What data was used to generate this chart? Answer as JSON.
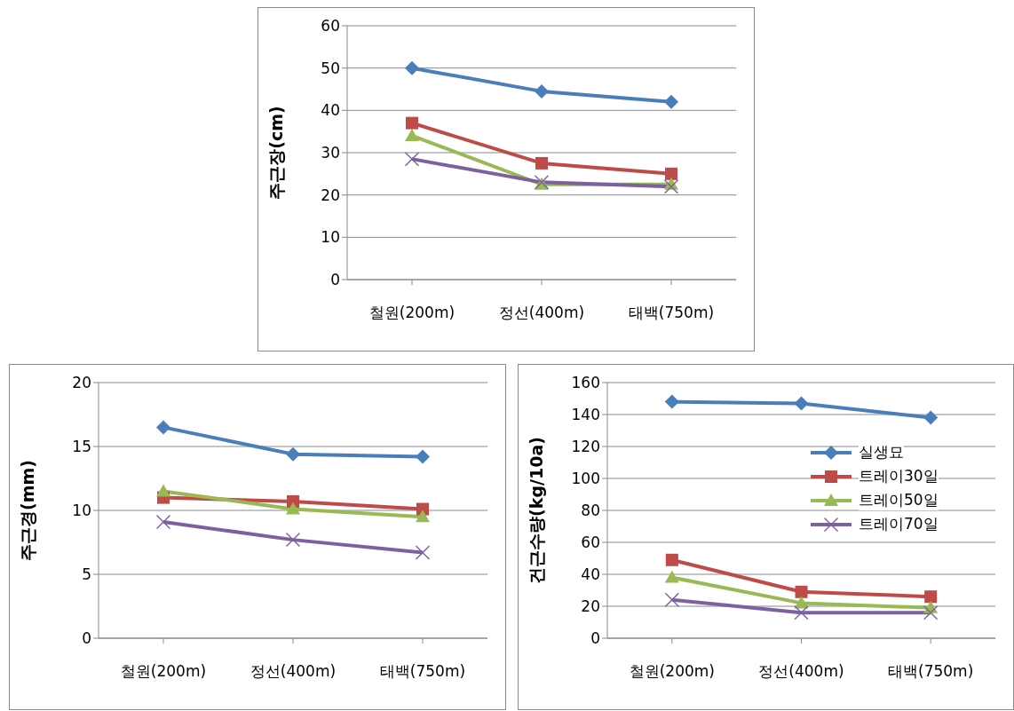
{
  "chart_data": [
    {
      "type": "line",
      "ylabel": "주근장(cm)",
      "categories": [
        "철원(200m)",
        "정선(400m)",
        "태백(750m)"
      ],
      "ylim": [
        0,
        60
      ],
      "yticks": [
        0,
        10,
        20,
        30,
        40,
        50,
        60
      ],
      "grid": "y",
      "legend": false,
      "series": [
        {
          "color": "#4a7ebb",
          "marker": "diamond",
          "values": [
            50,
            44.5,
            42
          ]
        },
        {
          "color": "#be4b48",
          "marker": "square",
          "values": [
            37,
            27.5,
            25
          ]
        },
        {
          "color": "#98b954",
          "marker": "triangle",
          "values": [
            34,
            22.5,
            22.5
          ]
        },
        {
          "color": "#7d60a0",
          "marker": "cross",
          "values": [
            28.5,
            23,
            22
          ]
        }
      ]
    },
    {
      "type": "line",
      "ylabel": "주근경(mm)",
      "categories": [
        "철원(200m)",
        "정선(400m)",
        "태백(750m)"
      ],
      "ylim": [
        0,
        20
      ],
      "yticks": [
        0,
        5,
        10,
        15,
        20
      ],
      "grid": "y",
      "legend": false,
      "series": [
        {
          "color": "#4a7ebb",
          "marker": "diamond",
          "values": [
            16.5,
            14.4,
            14.2
          ]
        },
        {
          "color": "#be4b48",
          "marker": "square",
          "values": [
            11,
            10.7,
            10.1
          ]
        },
        {
          "color": "#98b954",
          "marker": "triangle",
          "values": [
            11.5,
            10.1,
            9.5
          ]
        },
        {
          "color": "#7d60a0",
          "marker": "cross",
          "values": [
            9.1,
            7.7,
            6.7
          ]
        }
      ]
    },
    {
      "type": "line",
      "ylabel": "건근수량(kg/10a)",
      "categories": [
        "철원(200m)",
        "정선(400m)",
        "태백(750m)"
      ],
      "ylim": [
        0,
        160
      ],
      "yticks": [
        0,
        20,
        40,
        60,
        80,
        100,
        120,
        140,
        160
      ],
      "grid": "y",
      "legend": "right",
      "series": [
        {
          "name": "실생묘",
          "color": "#4a7ebb",
          "marker": "diamond",
          "values": [
            148,
            147,
            138
          ]
        },
        {
          "name": "트레이30일",
          "color": "#be4b48",
          "marker": "square",
          "values": [
            49,
            29,
            26
          ]
        },
        {
          "name": "트레이50일",
          "color": "#98b954",
          "marker": "triangle",
          "values": [
            38,
            22,
            19
          ]
        },
        {
          "name": "트레이70일",
          "color": "#7d60a0",
          "marker": "cross",
          "values": [
            24,
            16,
            16
          ]
        }
      ]
    }
  ]
}
